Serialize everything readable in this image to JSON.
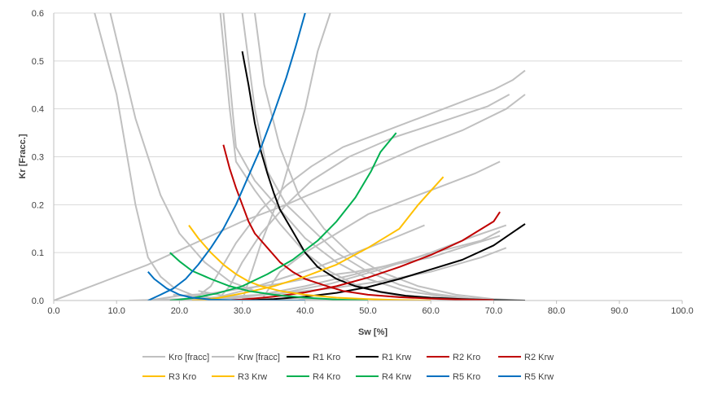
{
  "chart_data": {
    "type": "line",
    "xlabel": "Sw [%]",
    "ylabel": "Kr [Fracc.]",
    "xlim": [
      0,
      100
    ],
    "ylim": [
      0,
      0.6
    ],
    "x_ticks": [
      "0.0",
      "10.0",
      "20.0",
      "30.0",
      "40.0",
      "50.0",
      "60.0",
      "70.0",
      "80.0",
      "90.0",
      "100.0"
    ],
    "y_ticks": [
      "0.0",
      "0.1",
      "0.2",
      "0.3",
      "0.4",
      "0.5",
      "0.6"
    ],
    "grid": "horizontal",
    "legend_position": "bottom",
    "colors": {
      "gray": "#c0c0c0",
      "black": "#000000",
      "red": "#c00000",
      "yellow": "#ffc000",
      "green": "#00b050",
      "blue": "#0070c0",
      "grid": "#d9d9d9",
      "axis": "#bfbfbf"
    },
    "background_kro": [
      [
        [
          6.5,
          0.6
        ],
        [
          10,
          0.43
        ],
        [
          13,
          0.2
        ],
        [
          15,
          0.09
        ],
        [
          17,
          0.05
        ],
        [
          19,
          0.028
        ],
        [
          22,
          0.012
        ],
        [
          26,
          0.004
        ],
        [
          30,
          0.001
        ],
        [
          35,
          0
        ]
      ],
      [
        [
          9,
          0.6
        ],
        [
          13,
          0.38
        ],
        [
          17,
          0.22
        ],
        [
          20,
          0.14
        ],
        [
          24,
          0.08
        ],
        [
          28,
          0.04
        ],
        [
          33,
          0.015
        ],
        [
          40,
          0.003
        ],
        [
          48,
          0
        ]
      ],
      [
        [
          26.5,
          0.6
        ],
        [
          28,
          0.4
        ],
        [
          29,
          0.29
        ],
        [
          32,
          0.23
        ],
        [
          36,
          0.16
        ],
        [
          40,
          0.1
        ],
        [
          44,
          0.06
        ],
        [
          48,
          0.033
        ],
        [
          52,
          0.017
        ],
        [
          56,
          0.008
        ],
        [
          62,
          0.002
        ],
        [
          68,
          0
        ]
      ],
      [
        [
          27,
          0.6
        ],
        [
          29,
          0.32
        ],
        [
          32,
          0.25
        ],
        [
          36,
          0.19
        ],
        [
          40,
          0.13
        ],
        [
          45,
          0.08
        ],
        [
          50,
          0.045
        ],
        [
          56,
          0.02
        ],
        [
          62,
          0.008
        ],
        [
          68,
          0.002
        ],
        [
          72,
          0
        ]
      ],
      [
        [
          30,
          0.6
        ],
        [
          32,
          0.4
        ],
        [
          34,
          0.27
        ],
        [
          37,
          0.2
        ],
        [
          41,
          0.15
        ],
        [
          45,
          0.1
        ],
        [
          50,
          0.06
        ],
        [
          55,
          0.033
        ],
        [
          60,
          0.015
        ],
        [
          66,
          0.005
        ],
        [
          72,
          0
        ]
      ],
      [
        [
          32,
          0.6
        ],
        [
          33.5,
          0.45
        ],
        [
          36,
          0.32
        ],
        [
          39,
          0.22
        ],
        [
          43,
          0.15
        ],
        [
          47,
          0.1
        ],
        [
          52,
          0.06
        ],
        [
          58,
          0.03
        ],
        [
          64,
          0.012
        ],
        [
          70,
          0.003
        ],
        [
          75,
          0
        ]
      ],
      [
        [
          23,
          0.02
        ],
        [
          27,
          0.01
        ],
        [
          32,
          0.004
        ],
        [
          38,
          0.001
        ],
        [
          45,
          0
        ]
      ],
      [
        [
          19,
          0.012
        ],
        [
          24,
          0.006
        ],
        [
          30,
          0.002
        ],
        [
          36,
          0
        ]
      ]
    ],
    "background_krw": [
      [
        [
          0,
          0
        ],
        [
          8,
          0.04
        ],
        [
          15,
          0.075
        ],
        [
          20,
          0.105
        ],
        [
          25,
          0.135
        ],
        [
          30,
          0.165
        ],
        [
          37,
          0.2
        ],
        [
          44,
          0.24
        ],
        [
          51,
          0.28
        ],
        [
          58,
          0.32
        ],
        [
          65,
          0.355
        ],
        [
          72,
          0.4
        ],
        [
          75,
          0.43
        ]
      ],
      [
        [
          22,
          0
        ],
        [
          25,
          0.03
        ],
        [
          29,
          0.12
        ],
        [
          33,
          0.19
        ],
        [
          37,
          0.24
        ],
        [
          41,
          0.28
        ],
        [
          46,
          0.32
        ],
        [
          52,
          0.35
        ],
        [
          58,
          0.38
        ],
        [
          64,
          0.41
        ],
        [
          70,
          0.44
        ],
        [
          73,
          0.46
        ],
        [
          75,
          0.48
        ]
      ],
      [
        [
          26,
          0
        ],
        [
          28,
          0.03
        ],
        [
          30,
          0.08
        ],
        [
          33,
          0.14
        ],
        [
          37,
          0.2
        ],
        [
          41,
          0.25
        ],
        [
          47,
          0.3
        ],
        [
          54,
          0.34
        ],
        [
          61,
          0.37
        ],
        [
          69,
          0.405
        ],
        [
          72.5,
          0.43
        ]
      ],
      [
        [
          30,
          0
        ],
        [
          33,
          0.12
        ],
        [
          36,
          0.22
        ],
        [
          38,
          0.31
        ],
        [
          40,
          0.4
        ],
        [
          42,
          0.52
        ],
        [
          44,
          0.6
        ]
      ],
      [
        [
          33,
          0
        ],
        [
          36,
          0.06
        ],
        [
          40,
          0.1
        ],
        [
          45,
          0.14
        ],
        [
          50,
          0.18
        ],
        [
          56,
          0.21
        ],
        [
          62,
          0.24
        ],
        [
          67,
          0.265
        ],
        [
          71,
          0.29
        ]
      ],
      [
        [
          24,
          0
        ],
        [
          30,
          0.02
        ],
        [
          36,
          0.045
        ],
        [
          42,
          0.07
        ],
        [
          48,
          0.1
        ],
        [
          54,
          0.13
        ],
        [
          59,
          0.157
        ]
      ],
      [
        [
          15,
          0
        ],
        [
          20,
          0.01
        ],
        [
          25,
          0.015
        ],
        [
          30,
          0.025
        ],
        [
          36,
          0.035
        ],
        [
          42,
          0.05
        ],
        [
          48,
          0.06
        ],
        [
          54,
          0.075
        ],
        [
          60,
          0.09
        ],
        [
          66,
          0.115
        ],
        [
          71,
          0.135
        ]
      ],
      [
        [
          18,
          0
        ],
        [
          25,
          0.004
        ],
        [
          32,
          0.01
        ],
        [
          40,
          0.03
        ],
        [
          48,
          0.055
        ],
        [
          55,
          0.08
        ],
        [
          62,
          0.105
        ],
        [
          68,
          0.125
        ],
        [
          71,
          0.145
        ]
      ],
      [
        [
          20,
          0
        ],
        [
          28,
          0.005
        ],
        [
          36,
          0.015
        ],
        [
          44,
          0.035
        ],
        [
          52,
          0.065
        ],
        [
          60,
          0.1
        ],
        [
          66,
          0.13
        ],
        [
          72,
          0.157
        ]
      ],
      [
        [
          12,
          0
        ],
        [
          20,
          0.003
        ],
        [
          28,
          0.008
        ],
        [
          36,
          0.015
        ],
        [
          44,
          0.025
        ],
        [
          52,
          0.04
        ],
        [
          60,
          0.06
        ],
        [
          68,
          0.09
        ],
        [
          72,
          0.11
        ]
      ]
    ],
    "series": [
      {
        "name": "R1 Kro",
        "color": "black",
        "points": [
          [
            30,
            0.52
          ],
          [
            31,
            0.45
          ],
          [
            32,
            0.37
          ],
          [
            33,
            0.31
          ],
          [
            34,
            0.265
          ],
          [
            35,
            0.225
          ],
          [
            36,
            0.19
          ],
          [
            38,
            0.145
          ],
          [
            40,
            0.1
          ],
          [
            42,
            0.07
          ],
          [
            45,
            0.045
          ],
          [
            48,
            0.03
          ],
          [
            52,
            0.018
          ],
          [
            56,
            0.01
          ],
          [
            60,
            0.006
          ],
          [
            65,
            0.003
          ],
          [
            70,
            0.001
          ],
          [
            75,
            0
          ]
        ]
      },
      {
        "name": "R1 Krw",
        "color": "black",
        "points": [
          [
            30,
            0
          ],
          [
            35,
            0.003
          ],
          [
            40,
            0.008
          ],
          [
            45,
            0.016
          ],
          [
            50,
            0.028
          ],
          [
            55,
            0.045
          ],
          [
            60,
            0.065
          ],
          [
            65,
            0.085
          ],
          [
            70,
            0.115
          ],
          [
            75,
            0.16
          ]
        ]
      },
      {
        "name": "R2 Kro",
        "color": "red",
        "points": [
          [
            27,
            0.325
          ],
          [
            28,
            0.275
          ],
          [
            29,
            0.235
          ],
          [
            30,
            0.2
          ],
          [
            31,
            0.165
          ],
          [
            32,
            0.14
          ],
          [
            34,
            0.11
          ],
          [
            36,
            0.08
          ],
          [
            38,
            0.06
          ],
          [
            40,
            0.045
          ],
          [
            43,
            0.032
          ],
          [
            46,
            0.02
          ],
          [
            50,
            0.012
          ],
          [
            55,
            0.007
          ],
          [
            60,
            0.004
          ],
          [
            65,
            0.002
          ],
          [
            70,
            0.001
          ]
        ]
      },
      {
        "name": "R2 Krw",
        "color": "red",
        "points": [
          [
            27,
            0
          ],
          [
            30,
            0.002
          ],
          [
            35,
            0.008
          ],
          [
            40,
            0.017
          ],
          [
            45,
            0.03
          ],
          [
            50,
            0.048
          ],
          [
            55,
            0.07
          ],
          [
            60,
            0.095
          ],
          [
            65,
            0.125
          ],
          [
            70,
            0.165
          ],
          [
            71,
            0.185
          ]
        ]
      },
      {
        "name": "R3 Kro",
        "color": "yellow",
        "points": [
          [
            21.5,
            0.157
          ],
          [
            23,
            0.13
          ],
          [
            25,
            0.1
          ],
          [
            27,
            0.075
          ],
          [
            29,
            0.055
          ],
          [
            31,
            0.04
          ],
          [
            33,
            0.03
          ],
          [
            36,
            0.02
          ],
          [
            40,
            0.012
          ],
          [
            45,
            0.006
          ],
          [
            50,
            0.003
          ],
          [
            55,
            0.001
          ],
          [
            60,
            0
          ]
        ]
      },
      {
        "name": "R3 Krw",
        "color": "yellow",
        "points": [
          [
            22,
            0
          ],
          [
            26,
            0.005
          ],
          [
            30,
            0.015
          ],
          [
            35,
            0.03
          ],
          [
            40,
            0.05
          ],
          [
            45,
            0.075
          ],
          [
            50,
            0.11
          ],
          [
            55,
            0.15
          ],
          [
            58,
            0.2
          ],
          [
            62,
            0.258
          ]
        ]
      },
      {
        "name": "R4 Kro",
        "color": "green",
        "points": [
          [
            18.5,
            0.1
          ],
          [
            20,
            0.082
          ],
          [
            22,
            0.062
          ],
          [
            25,
            0.045
          ],
          [
            28,
            0.03
          ],
          [
            31,
            0.02
          ],
          [
            35,
            0.012
          ],
          [
            40,
            0.006
          ],
          [
            45,
            0.002
          ],
          [
            50,
            0
          ]
        ]
      },
      {
        "name": "R4 Krw",
        "color": "green",
        "points": [
          [
            18.5,
            0
          ],
          [
            22,
            0.005
          ],
          [
            26,
            0.015
          ],
          [
            30,
            0.03
          ],
          [
            34,
            0.055
          ],
          [
            38,
            0.085
          ],
          [
            42,
            0.125
          ],
          [
            45,
            0.165
          ],
          [
            48,
            0.215
          ],
          [
            50.5,
            0.27
          ],
          [
            52,
            0.31
          ],
          [
            54.5,
            0.35
          ]
        ]
      },
      {
        "name": "R5 Kro",
        "color": "blue",
        "points": [
          [
            15,
            0.06
          ],
          [
            16,
            0.045
          ],
          [
            18,
            0.025
          ],
          [
            20,
            0.012
          ],
          [
            22,
            0.006
          ],
          [
            25,
            0.002
          ],
          [
            30,
            0
          ],
          [
            40,
            0
          ]
        ]
      },
      {
        "name": "R5 Krw",
        "color": "blue",
        "points": [
          [
            15,
            0
          ],
          [
            17,
            0.012
          ],
          [
            19,
            0.025
          ],
          [
            21,
            0.045
          ],
          [
            23,
            0.075
          ],
          [
            25,
            0.11
          ],
          [
            27,
            0.15
          ],
          [
            29,
            0.2
          ],
          [
            31,
            0.26
          ],
          [
            33,
            0.32
          ],
          [
            35,
            0.39
          ],
          [
            37,
            0.465
          ],
          [
            38.5,
            0.53
          ],
          [
            40,
            0.6
          ]
        ]
      }
    ],
    "legend": [
      {
        "name": "Kro [fracc]",
        "color": "gray"
      },
      {
        "name": "Krw [fracc]",
        "color": "gray"
      },
      {
        "name": "R1 Kro",
        "color": "black"
      },
      {
        "name": "R1 Krw",
        "color": "black"
      },
      {
        "name": "R2 Kro",
        "color": "red"
      },
      {
        "name": "R2 Krw",
        "color": "red"
      },
      {
        "name": "R3 Kro",
        "color": "yellow"
      },
      {
        "name": "R3 Krw",
        "color": "yellow"
      },
      {
        "name": "R4 Kro",
        "color": "green"
      },
      {
        "name": "R4 Krw",
        "color": "green"
      },
      {
        "name": "R5 Kro",
        "color": "blue"
      },
      {
        "name": "R5 Krw",
        "color": "blue"
      }
    ]
  }
}
